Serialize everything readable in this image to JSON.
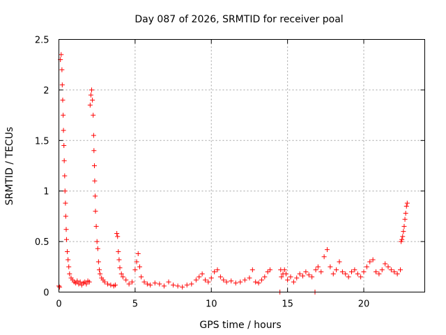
{
  "chart_data": {
    "type": "scatter",
    "title": "Day 087 of 2026, SRMTID for receiver poal",
    "xlabel": "GPS time / hours",
    "ylabel": "SRMTID / TECUs",
    "xlim": [
      0,
      24
    ],
    "ylim": [
      0,
      2.5
    ],
    "xticks": [
      0,
      5,
      10,
      15,
      20
    ],
    "xtick_labels": [
      "0",
      "5",
      "10",
      "15",
      "20"
    ],
    "yticks": [
      0,
      0.5,
      1,
      1.5,
      2,
      2.5
    ],
    "ytick_labels": [
      "0",
      "0.5",
      "1",
      "1.5",
      "2",
      "2.5"
    ],
    "grid": true,
    "marker": "+",
    "color": "#ff0000",
    "series": [
      {
        "name": "SRMTID",
        "x": [
          0.0,
          0.05,
          0.1,
          0.15,
          0.2,
          0.22,
          0.25,
          0.28,
          0.3,
          0.33,
          0.35,
          0.38,
          0.4,
          0.43,
          0.45,
          0.48,
          0.5,
          0.55,
          0.6,
          0.65,
          0.7,
          0.8,
          0.9,
          1.0,
          1.1,
          1.2,
          1.3,
          1.4,
          1.5,
          1.6,
          1.7,
          1.8,
          1.9,
          2.0,
          2.05,
          2.1,
          2.15,
          2.2,
          2.25,
          2.28,
          2.3,
          2.33,
          2.35,
          2.38,
          2.4,
          2.45,
          2.5,
          2.55,
          2.6,
          2.65,
          2.7,
          2.8,
          2.9,
          3.0,
          3.2,
          3.4,
          3.6,
          3.7,
          3.8,
          3.85,
          3.9,
          3.95,
          4.0,
          4.1,
          4.2,
          4.4,
          4.6,
          4.8,
          5.0,
          5.1,
          5.2,
          5.3,
          5.4,
          5.6,
          5.8,
          6.0,
          6.3,
          6.6,
          6.9,
          7.2,
          7.5,
          7.8,
          8.1,
          8.4,
          8.7,
          9.0,
          9.2,
          9.4,
          9.6,
          9.8,
          10.0,
          10.2,
          10.4,
          10.6,
          10.8,
          11.0,
          11.3,
          11.6,
          11.9,
          12.2,
          12.5,
          12.7,
          12.9,
          13.1,
          13.3,
          13.5,
          13.7,
          13.85,
          14.5,
          14.55,
          14.6,
          14.7,
          14.8,
          14.9,
          15.0,
          15.2,
          15.4,
          15.6,
          15.8,
          16.0,
          16.2,
          16.4,
          16.6,
          16.8,
          16.85,
          17.0,
          17.2,
          17.4,
          17.6,
          17.8,
          18.0,
          18.2,
          18.4,
          18.6,
          18.8,
          19.0,
          19.2,
          19.4,
          19.6,
          19.8,
          20.0,
          20.2,
          20.4,
          20.6,
          20.8,
          21.0,
          21.2,
          21.4,
          21.6,
          21.8,
          22.0,
          22.2,
          22.4,
          22.45,
          22.5,
          22.55,
          22.6,
          22.65,
          22.7,
          22.75,
          22.8,
          22.85
        ],
        "y": [
          0.06,
          0.05,
          2.3,
          2.35,
          2.2,
          2.05,
          1.9,
          1.75,
          1.6,
          1.45,
          1.3,
          1.15,
          1.0,
          0.88,
          0.75,
          0.62,
          0.52,
          0.4,
          0.32,
          0.25,
          0.18,
          0.14,
          0.12,
          0.1,
          0.09,
          0.11,
          0.08,
          0.1,
          0.07,
          0.09,
          0.1,
          0.08,
          0.11,
          0.1,
          1.85,
          1.95,
          2.0,
          1.9,
          1.75,
          1.55,
          1.4,
          1.25,
          1.1,
          0.95,
          0.8,
          0.65,
          0.5,
          0.43,
          0.3,
          0.22,
          0.18,
          0.14,
          0.12,
          0.1,
          0.08,
          0.07,
          0.06,
          0.07,
          0.58,
          0.55,
          0.4,
          0.32,
          0.24,
          0.18,
          0.15,
          0.12,
          0.08,
          0.1,
          0.22,
          0.3,
          0.38,
          0.25,
          0.15,
          0.1,
          0.08,
          0.07,
          0.09,
          0.08,
          0.06,
          0.1,
          0.07,
          0.06,
          0.05,
          0.07,
          0.08,
          0.12,
          0.15,
          0.18,
          0.12,
          0.1,
          0.14,
          0.2,
          0.22,
          0.15,
          0.12,
          0.1,
          0.11,
          0.09,
          0.1,
          0.12,
          0.14,
          0.22,
          0.1,
          0.09,
          0.12,
          0.15,
          0.2,
          0.22,
          0.0,
          0.22,
          0.15,
          0.18,
          0.22,
          0.18,
          0.12,
          0.15,
          0.1,
          0.14,
          0.18,
          0.16,
          0.2,
          0.17,
          0.15,
          0.0,
          0.22,
          0.25,
          0.2,
          0.35,
          0.42,
          0.25,
          0.18,
          0.22,
          0.3,
          0.2,
          0.18,
          0.15,
          0.2,
          0.22,
          0.18,
          0.15,
          0.2,
          0.25,
          0.3,
          0.32,
          0.2,
          0.18,
          0.22,
          0.28,
          0.25,
          0.22,
          0.2,
          0.18,
          0.22,
          0.5,
          0.52,
          0.55,
          0.6,
          0.65,
          0.72,
          0.78,
          0.85,
          0.88
        ]
      }
    ]
  }
}
